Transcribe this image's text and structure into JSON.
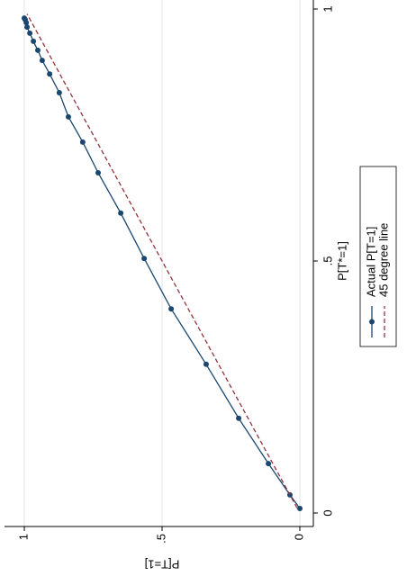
{
  "chart_data": {
    "type": "line",
    "x_label": "P[T*=1]",
    "y_label": "P[T=1]",
    "xlim": [
      0,
      1
    ],
    "ylim": [
      0,
      1
    ],
    "xticks": [
      0,
      {
        "value": 0.5,
        "label": ".5"
      },
      1
    ],
    "yticks": [
      0,
      {
        "value": 0.5,
        "label": ".5"
      },
      1
    ],
    "grid": true,
    "legend_position": "bottom",
    "rotation": -90,
    "series": [
      {
        "name": "Actual P[T=1]",
        "color": "#1a476f",
        "style": "solid",
        "markers": true,
        "x": [
          0.009,
          0.036,
          0.098,
          0.188,
          0.295,
          0.405,
          0.505,
          0.595,
          0.675,
          0.736,
          0.786,
          0.834,
          0.871,
          0.898,
          0.918,
          0.936,
          0.952,
          0.964,
          0.973,
          0.979,
          0.982
        ],
        "values": [
          0.0,
          0.036,
          0.114,
          0.222,
          0.34,
          0.467,
          0.565,
          0.65,
          0.732,
          0.788,
          0.84,
          0.873,
          0.908,
          0.935,
          0.951,
          0.967,
          0.98,
          0.99,
          0.993,
          0.997,
          1.0
        ]
      },
      {
        "name": "45 degree line",
        "color": "#90353b",
        "style": "dashed",
        "markers": false,
        "x": [
          0.01,
          0.99
        ],
        "values": [
          0.01,
          0.99
        ]
      }
    ]
  }
}
